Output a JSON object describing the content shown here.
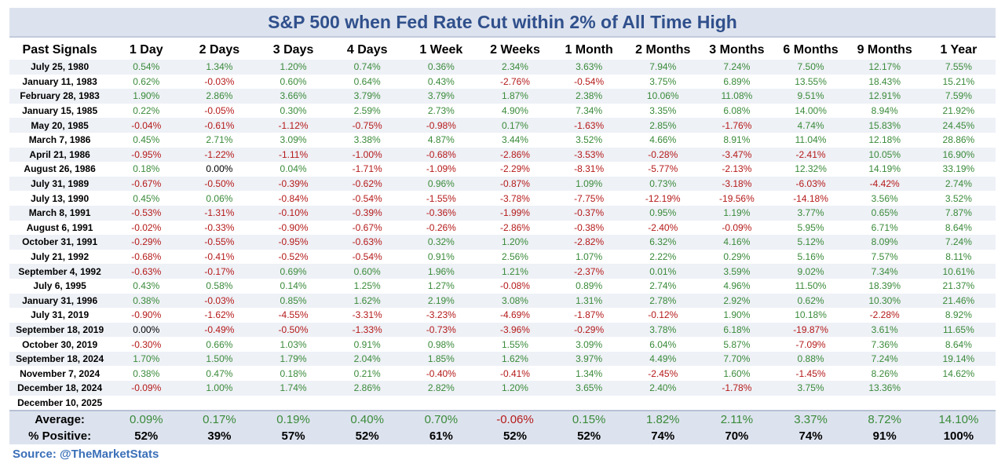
{
  "title": "S&P 500 when Fed Rate Cut within 2% of All Time High",
  "columns": [
    "Past Signals",
    "1 Day",
    "2 Days",
    "3 Days",
    "4 Days",
    "1 Week",
    "2 Weeks",
    "1 Month",
    "2 Months",
    "3 Months",
    "6 Months",
    "9 Months",
    "1 Year"
  ],
  "rows": [
    {
      "date": "July 25, 1980",
      "values": [
        "0.54%",
        "1.34%",
        "1.20%",
        "0.74%",
        "0.36%",
        "2.34%",
        "3.63%",
        "7.94%",
        "7.24%",
        "7.50%",
        "12.17%",
        "7.55%"
      ]
    },
    {
      "date": "January 11, 1983",
      "values": [
        "0.62%",
        "-0.03%",
        "0.60%",
        "0.64%",
        "0.43%",
        "-2.76%",
        "-0.54%",
        "3.75%",
        "6.89%",
        "13.55%",
        "18.43%",
        "15.21%"
      ]
    },
    {
      "date": "February 28, 1983",
      "values": [
        "1.90%",
        "2.86%",
        "3.66%",
        "3.79%",
        "3.79%",
        "1.87%",
        "2.38%",
        "10.06%",
        "11.08%",
        "9.51%",
        "12.91%",
        "7.59%"
      ]
    },
    {
      "date": "January 15, 1985",
      "values": [
        "0.22%",
        "-0.05%",
        "0.30%",
        "2.59%",
        "2.73%",
        "4.90%",
        "7.34%",
        "3.35%",
        "6.08%",
        "14.00%",
        "8.94%",
        "21.92%"
      ]
    },
    {
      "date": "May 20, 1985",
      "values": [
        "-0.04%",
        "-0.61%",
        "-1.12%",
        "-0.75%",
        "-0.98%",
        "0.17%",
        "-1.63%",
        "2.85%",
        "-1.76%",
        "4.74%",
        "15.83%",
        "24.45%"
      ]
    },
    {
      "date": "March 7, 1986",
      "values": [
        "0.45%",
        "2.71%",
        "3.09%",
        "3.38%",
        "4.87%",
        "3.44%",
        "3.52%",
        "4.66%",
        "8.91%",
        "11.04%",
        "12.18%",
        "28.86%"
      ]
    },
    {
      "date": "April 21, 1986",
      "values": [
        "-0.95%",
        "-1.22%",
        "-1.11%",
        "-1.00%",
        "-0.68%",
        "-2.86%",
        "-3.53%",
        "-0.28%",
        "-3.47%",
        "-2.41%",
        "10.05%",
        "16.90%"
      ]
    },
    {
      "date": "August 26, 1986",
      "values": [
        "0.18%",
        "0.00%",
        "0.04%",
        "-1.71%",
        "-1.09%",
        "-2.29%",
        "-8.31%",
        "-5.77%",
        "-2.13%",
        "12.32%",
        "14.19%",
        "33.19%"
      ]
    },
    {
      "date": "July 31, 1989",
      "values": [
        "-0.67%",
        "-0.50%",
        "-0.39%",
        "-0.62%",
        "0.96%",
        "-0.87%",
        "1.09%",
        "0.73%",
        "-3.18%",
        "-6.03%",
        "-4.42%",
        "2.74%"
      ]
    },
    {
      "date": "July 13, 1990",
      "values": [
        "0.45%",
        "0.06%",
        "-0.84%",
        "-0.54%",
        "-1.55%",
        "-3.78%",
        "-7.75%",
        "-12.19%",
        "-19.56%",
        "-14.18%",
        "3.56%",
        "3.52%"
      ]
    },
    {
      "date": "March 8, 1991",
      "values": [
        "-0.53%",
        "-1.31%",
        "-0.10%",
        "-0.39%",
        "-0.36%",
        "-1.99%",
        "-0.37%",
        "0.95%",
        "1.19%",
        "3.77%",
        "0.65%",
        "7.87%"
      ]
    },
    {
      "date": "August 6, 1991",
      "values": [
        "-0.02%",
        "-0.33%",
        "-0.90%",
        "-0.67%",
        "-0.26%",
        "-2.86%",
        "-0.38%",
        "-2.40%",
        "-0.09%",
        "5.95%",
        "6.71%",
        "8.64%"
      ]
    },
    {
      "date": "October 31, 1991",
      "values": [
        "-0.29%",
        "-0.55%",
        "-0.95%",
        "-0.63%",
        "0.32%",
        "1.20%",
        "-2.82%",
        "6.32%",
        "4.16%",
        "5.12%",
        "8.09%",
        "7.24%"
      ]
    },
    {
      "date": "July 21, 1992",
      "values": [
        "-0.68%",
        "-0.41%",
        "-0.52%",
        "-0.54%",
        "0.91%",
        "2.56%",
        "1.07%",
        "2.22%",
        "0.29%",
        "5.16%",
        "7.57%",
        "8.11%"
      ]
    },
    {
      "date": "September 4, 1992",
      "values": [
        "-0.63%",
        "-0.17%",
        "0.69%",
        "0.60%",
        "1.96%",
        "1.21%",
        "-2.37%",
        "0.01%",
        "3.59%",
        "9.02%",
        "7.34%",
        "10.61%"
      ]
    },
    {
      "date": "July 6, 1995",
      "values": [
        "0.43%",
        "0.58%",
        "0.14%",
        "1.25%",
        "1.27%",
        "-0.08%",
        "0.89%",
        "2.74%",
        "4.96%",
        "11.50%",
        "18.39%",
        "21.37%"
      ]
    },
    {
      "date": "January 31, 1996",
      "values": [
        "0.38%",
        "-0.03%",
        "0.85%",
        "1.62%",
        "2.19%",
        "3.08%",
        "1.31%",
        "2.78%",
        "2.92%",
        "0.62%",
        "10.30%",
        "21.46%"
      ]
    },
    {
      "date": "July 31, 2019",
      "values": [
        "-0.90%",
        "-1.62%",
        "-4.55%",
        "-3.31%",
        "-3.23%",
        "-4.69%",
        "-1.87%",
        "-0.12%",
        "1.90%",
        "10.18%",
        "-2.28%",
        "8.92%"
      ]
    },
    {
      "date": "September 18, 2019",
      "values": [
        "0.00%",
        "-0.49%",
        "-0.50%",
        "-1.33%",
        "-0.73%",
        "-3.96%",
        "-0.29%",
        "3.78%",
        "6.18%",
        "-19.87%",
        "3.61%",
        "11.65%"
      ]
    },
    {
      "date": "October 30, 2019",
      "values": [
        "-0.30%",
        "0.66%",
        "1.03%",
        "0.91%",
        "0.98%",
        "1.55%",
        "3.09%",
        "6.04%",
        "5.87%",
        "-7.09%",
        "7.36%",
        "8.64%"
      ]
    },
    {
      "date": "September 18, 2024",
      "values": [
        "1.70%",
        "1.50%",
        "1.79%",
        "2.04%",
        "1.85%",
        "1.62%",
        "3.97%",
        "4.49%",
        "7.70%",
        "0.88%",
        "7.24%",
        "19.14%"
      ]
    },
    {
      "date": "November 7, 2024",
      "values": [
        "0.38%",
        "0.47%",
        "0.18%",
        "0.21%",
        "-0.40%",
        "-0.41%",
        "1.34%",
        "-2.45%",
        "1.60%",
        "-1.45%",
        "8.26%",
        "14.62%"
      ]
    },
    {
      "date": "December 18, 2024",
      "values": [
        "-0.09%",
        "1.00%",
        "1.74%",
        "2.86%",
        "2.82%",
        "1.20%",
        "3.65%",
        "2.40%",
        "-1.78%",
        "3.75%",
        "13.36%",
        ""
      ]
    },
    {
      "date": "December 10, 2025",
      "values": [
        "",
        "",
        "",
        "",
        "",
        "",
        "",
        "",
        "",
        "",
        "",
        ""
      ]
    }
  ],
  "average": {
    "label": "Average:",
    "values": [
      "0.09%",
      "0.17%",
      "0.19%",
      "0.40%",
      "0.70%",
      "-0.06%",
      "0.15%",
      "1.82%",
      "2.11%",
      "3.37%",
      "8.72%",
      "14.10%"
    ]
  },
  "pct_positive": {
    "label": "% Positive:",
    "values": [
      "52%",
      "39%",
      "57%",
      "52%",
      "61%",
      "52%",
      "52%",
      "74%",
      "70%",
      "74%",
      "91%",
      "100%"
    ]
  },
  "source": "Source: @TheMarketStats",
  "colors": {
    "positive": "#3a8a3a",
    "negative": "#b51a1a",
    "title": "#30508c",
    "source": "#3a6fb8",
    "header_bg": "#dde3ee",
    "stripe": "#eef1f6"
  }
}
